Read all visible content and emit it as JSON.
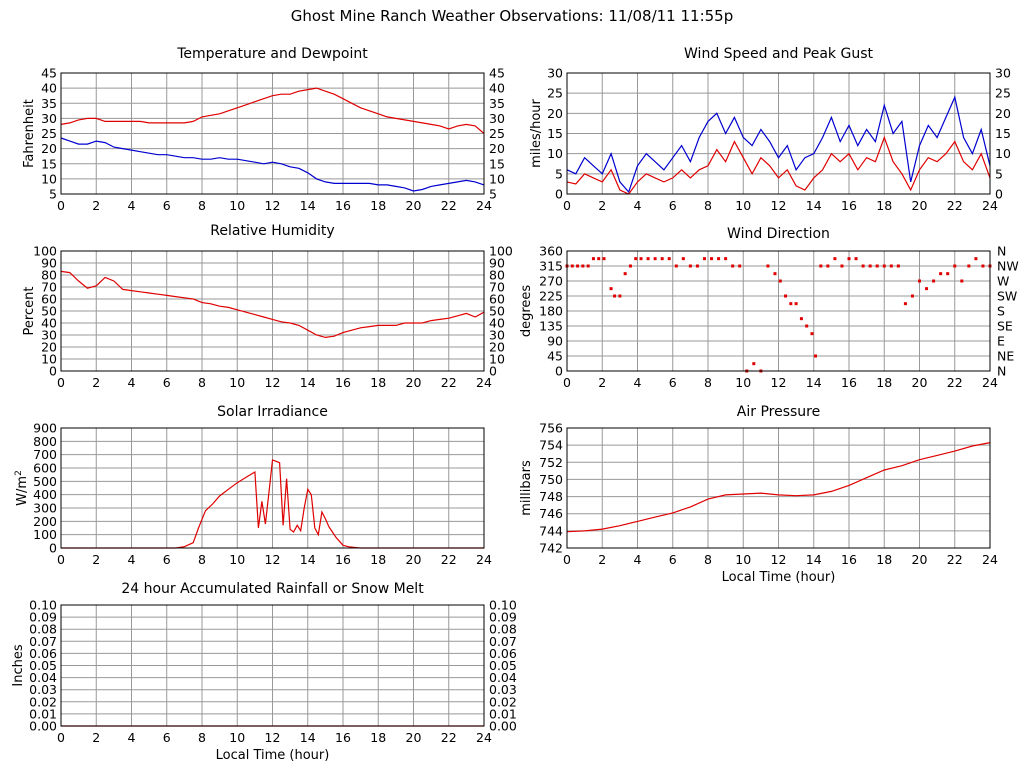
{
  "page": {
    "title": "Ghost Mine Ranch Weather Observations: 11/08/11 11:55p"
  },
  "chart_data": [
    {
      "id": "temperature",
      "type": "line",
      "title": "Temperature and Dewpoint",
      "ylabel": "Fahrenheit",
      "xlabel": "",
      "xlim": [
        0,
        24
      ],
      "ylim": [
        5,
        45
      ],
      "xticks": [
        0,
        2,
        4,
        6,
        8,
        10,
        12,
        14,
        16,
        18,
        20,
        22,
        24
      ],
      "yticks": [
        5,
        10,
        15,
        20,
        25,
        30,
        35,
        40,
        45
      ],
      "right_axis": true,
      "grid": true,
      "series": [
        {
          "color": "#e00000",
          "x": [
            0,
            0.5,
            1,
            1.5,
            2,
            2.5,
            3,
            3.5,
            4,
            4.5,
            5,
            5.5,
            6,
            6.5,
            7,
            7.5,
            8,
            8.5,
            9,
            9.5,
            10,
            10.5,
            11,
            11.5,
            12,
            12.5,
            13,
            13.5,
            14,
            14.5,
            15,
            15.5,
            16,
            16.5,
            17,
            17.5,
            18,
            18.5,
            19,
            19.5,
            20,
            20.5,
            21,
            21.5,
            22,
            22.5,
            23,
            23.5,
            24
          ],
          "y": [
            28,
            28.5,
            29.5,
            30,
            30,
            29,
            29,
            29,
            29,
            29,
            28.5,
            28.5,
            28.5,
            28.5,
            28.5,
            29,
            30.5,
            31,
            31.5,
            32.5,
            33.5,
            34.5,
            35.5,
            36.5,
            37.5,
            38,
            38,
            39,
            39.5,
            40,
            39,
            38,
            36.5,
            35,
            33.5,
            32.5,
            31.5,
            30.5,
            30,
            29.5,
            29,
            28.5,
            28,
            27.5,
            26.5,
            27.5,
            28,
            27.5,
            25
          ]
        },
        {
          "color": "#0000d0",
          "x": [
            0,
            0.5,
            1,
            1.5,
            2,
            2.5,
            3,
            3.5,
            4,
            4.5,
            5,
            5.5,
            6,
            6.5,
            7,
            7.5,
            8,
            8.5,
            9,
            9.5,
            10,
            10.5,
            11,
            11.5,
            12,
            12.5,
            13,
            13.5,
            14,
            14.5,
            15,
            15.5,
            16,
            16.5,
            17,
            17.5,
            18,
            18.5,
            19,
            19.5,
            20,
            20.5,
            21,
            21.5,
            22,
            22.5,
            23,
            23.5,
            24
          ],
          "y": [
            23.5,
            22.5,
            21.5,
            21.5,
            22.5,
            22,
            20.5,
            20,
            19.5,
            19,
            18.5,
            18,
            18,
            17.5,
            17,
            17,
            16.5,
            16.5,
            17,
            16.5,
            16.5,
            16,
            15.5,
            15,
            15.5,
            15,
            14,
            13.5,
            12,
            10,
            9,
            8.5,
            8.5,
            8.5,
            8.5,
            8.5,
            8,
            8,
            7.5,
            7,
            6,
            6.5,
            7.5,
            8,
            8.5,
            9,
            9.5,
            9,
            8
          ]
        }
      ]
    },
    {
      "id": "wind-speed",
      "type": "line",
      "title": "Wind Speed and Peak Gust",
      "ylabel": "miles/hour",
      "xlabel": "",
      "xlim": [
        0,
        24
      ],
      "ylim": [
        0,
        30
      ],
      "xticks": [
        0,
        2,
        4,
        6,
        8,
        10,
        12,
        14,
        16,
        18,
        20,
        22,
        24
      ],
      "yticks": [
        0,
        5,
        10,
        15,
        20,
        25,
        30
      ],
      "right_axis": true,
      "grid": true,
      "series": [
        {
          "color": "#0000d0",
          "x": [
            0,
            0.5,
            1,
            1.5,
            2,
            2.5,
            3,
            3.5,
            4,
            4.5,
            5,
            5.5,
            6,
            6.5,
            7,
            7.5,
            8,
            8.5,
            9,
            9.5,
            10,
            10.5,
            11,
            11.5,
            12,
            12.5,
            13,
            13.5,
            14,
            14.5,
            15,
            15.5,
            16,
            16.5,
            17,
            17.5,
            18,
            18.5,
            19,
            19.5,
            20,
            20.5,
            21,
            21.5,
            22,
            22.5,
            23,
            23.5,
            24
          ],
          "y": [
            6,
            5,
            9,
            7,
            5,
            10,
            3,
            0.5,
            7,
            10,
            8,
            6,
            9,
            12,
            8,
            14,
            18,
            20,
            15,
            19,
            14,
            12,
            16,
            13,
            9,
            12,
            6,
            9,
            10,
            14,
            19,
            13,
            17,
            12,
            16,
            13,
            22,
            15,
            18,
            3,
            12,
            17,
            14,
            19,
            24,
            14,
            10,
            16,
            7
          ]
        },
        {
          "color": "#e00000",
          "x": [
            0,
            0.5,
            1,
            1.5,
            2,
            2.5,
            3,
            3.5,
            4,
            4.5,
            5,
            5.5,
            6,
            6.5,
            7,
            7.5,
            8,
            8.5,
            9,
            9.5,
            10,
            10.5,
            11,
            11.5,
            12,
            12.5,
            13,
            13.5,
            14,
            14.5,
            15,
            15.5,
            16,
            16.5,
            17,
            17.5,
            18,
            18.5,
            19,
            19.5,
            20,
            20.5,
            21,
            21.5,
            22,
            22.5,
            23,
            23.5,
            24
          ],
          "y": [
            3,
            2.5,
            5,
            4,
            3,
            6,
            1,
            0,
            3,
            5,
            4,
            3,
            4,
            6,
            4,
            6,
            7,
            11,
            8,
            13,
            9,
            5,
            9,
            7,
            4,
            6,
            2,
            1,
            4,
            6,
            10,
            8,
            10,
            6,
            9,
            8,
            14,
            8,
            5,
            1,
            6,
            9,
            8,
            10,
            13,
            8,
            6,
            10,
            4
          ]
        }
      ]
    },
    {
      "id": "humidity",
      "type": "line",
      "title": "Relative Humidity",
      "ylabel": "Percent",
      "xlabel": "",
      "xlim": [
        0,
        24
      ],
      "ylim": [
        0,
        100
      ],
      "xticks": [
        0,
        2,
        4,
        6,
        8,
        10,
        12,
        14,
        16,
        18,
        20,
        22,
        24
      ],
      "yticks": [
        0,
        10,
        20,
        30,
        40,
        50,
        60,
        70,
        80,
        90,
        100
      ],
      "right_axis": true,
      "grid": true,
      "series": [
        {
          "color": "#e00000",
          "x": [
            0,
            0.5,
            1,
            1.5,
            2,
            2.5,
            3,
            3.5,
            4,
            4.5,
            5,
            5.5,
            6,
            6.5,
            7,
            7.5,
            8,
            8.5,
            9,
            9.5,
            10,
            10.5,
            11,
            11.5,
            12,
            12.5,
            13,
            13.5,
            14,
            14.5,
            15,
            15.5,
            16,
            16.5,
            17,
            17.5,
            18,
            18.5,
            19,
            19.5,
            20,
            20.5,
            21,
            21.5,
            22,
            22.5,
            23,
            23.5,
            24
          ],
          "y": [
            83,
            82,
            75,
            69,
            71,
            78,
            75,
            68,
            67,
            66,
            65,
            64,
            63,
            62,
            61,
            60,
            57,
            56,
            54,
            53,
            51,
            49,
            47,
            45,
            43,
            41,
            40,
            38,
            34,
            30,
            28,
            29,
            32,
            34,
            36,
            37,
            38,
            38,
            38,
            40,
            40,
            40,
            42,
            43,
            44,
            46,
            48,
            45,
            49
          ]
        }
      ]
    },
    {
      "id": "wind-direction",
      "type": "scatter",
      "title": "Wind Direction",
      "ylabel": "degrees",
      "xlabel": "",
      "xlim": [
        0,
        24
      ],
      "ylim": [
        0,
        360
      ],
      "xticks": [
        0,
        2,
        4,
        6,
        8,
        10,
        12,
        14,
        16,
        18,
        20,
        22,
        24
      ],
      "yticks": [
        0,
        45,
        90,
        135,
        180,
        225,
        270,
        315,
        360
      ],
      "right_labels": [
        "N",
        "NE",
        "E",
        "SE",
        "S",
        "SW",
        "W",
        "NW",
        "N"
      ],
      "grid": true,
      "series": [
        {
          "color": "#e00000",
          "x": [
            0,
            0.3,
            0.6,
            0.9,
            1.2,
            1.5,
            1.8,
            2.1,
            2.5,
            2.7,
            3.0,
            3.3,
            3.6,
            3.9,
            4.2,
            4.6,
            5.0,
            5.4,
            5.8,
            6.2,
            6.6,
            7.0,
            7.4,
            7.8,
            8.2,
            8.6,
            9.0,
            9.4,
            9.8,
            10.2,
            10.6,
            11.0,
            11.4,
            11.8,
            12.1,
            12.4,
            12.7,
            13.0,
            13.3,
            13.6,
            13.9,
            14.1,
            14.4,
            14.8,
            15.2,
            15.6,
            16.0,
            16.4,
            16.8,
            17.2,
            17.6,
            18.0,
            18.4,
            18.8,
            19.2,
            19.6,
            20.0,
            20.4,
            20.8,
            21.2,
            21.6,
            22.0,
            22.4,
            22.8,
            23.2,
            23.6,
            24.0
          ],
          "y": [
            315,
            315,
            315,
            315,
            315,
            337,
            337,
            337,
            247,
            225,
            225,
            292,
            315,
            337,
            337,
            337,
            337,
            337,
            337,
            315,
            337,
            315,
            315,
            337,
            337,
            337,
            337,
            315,
            315,
            0,
            22,
            0,
            315,
            292,
            270,
            225,
            202,
            202,
            157,
            135,
            112,
            45,
            315,
            315,
            337,
            315,
            337,
            337,
            315,
            315,
            315,
            315,
            315,
            315,
            202,
            225,
            270,
            247,
            270,
            292,
            292,
            315,
            270,
            315,
            337,
            315,
            315
          ]
        }
      ]
    },
    {
      "id": "solar",
      "type": "line",
      "title": "Solar Irradiance",
      "ylabel": "W/m",
      "ylabel_sup": "2",
      "xlabel": "",
      "xlim": [
        0,
        24
      ],
      "ylim": [
        0,
        900
      ],
      "xticks": [
        0,
        2,
        4,
        6,
        8,
        10,
        12,
        14,
        16,
        18,
        20,
        22,
        24
      ],
      "yticks": [
        0,
        100,
        200,
        300,
        400,
        500,
        600,
        700,
        800,
        900
      ],
      "right_axis": false,
      "grid": true,
      "series": [
        {
          "color": "#e00000",
          "x": [
            0,
            6.5,
            7.0,
            7.5,
            7.8,
            8.2,
            8.6,
            9.0,
            9.5,
            10.0,
            10.5,
            11.0,
            11.2,
            11.4,
            11.6,
            11.8,
            12.0,
            12.2,
            12.4,
            12.6,
            12.8,
            13.0,
            13.2,
            13.4,
            13.6,
            13.8,
            14.0,
            14.2,
            14.4,
            14.6,
            14.8,
            15.0,
            15.2,
            15.4,
            15.6,
            15.8,
            16.0,
            16.3,
            16.6,
            17.0,
            24
          ],
          "y": [
            0,
            0,
            10,
            40,
            150,
            280,
            330,
            390,
            440,
            490,
            530,
            570,
            150,
            350,
            180,
            420,
            660,
            650,
            640,
            170,
            520,
            140,
            120,
            170,
            130,
            300,
            440,
            400,
            150,
            100,
            270,
            220,
            160,
            120,
            80,
            50,
            20,
            10,
            5,
            0,
            0
          ]
        }
      ]
    },
    {
      "id": "pressure",
      "type": "line",
      "title": "Air Pressure",
      "ylabel": "millibars",
      "xlabel": "Local Time (hour)",
      "xlim": [
        0,
        24
      ],
      "ylim": [
        742,
        756
      ],
      "xticks": [
        0,
        2,
        4,
        6,
        8,
        10,
        12,
        14,
        16,
        18,
        20,
        22,
        24
      ],
      "yticks": [
        742,
        744,
        746,
        748,
        750,
        752,
        754,
        756
      ],
      "right_axis": false,
      "grid": true,
      "series": [
        {
          "color": "#e00000",
          "x": [
            0,
            1,
            2,
            3,
            4,
            5,
            6,
            7,
            8,
            9,
            10,
            11,
            12,
            13,
            14,
            15,
            16,
            17,
            18,
            19,
            20,
            21,
            22,
            23,
            24
          ],
          "y": [
            743.9,
            744.0,
            744.2,
            744.6,
            745.1,
            745.6,
            746.1,
            746.8,
            747.7,
            748.2,
            748.3,
            748.4,
            748.2,
            748.1,
            748.2,
            748.6,
            749.3,
            750.2,
            751.1,
            751.6,
            752.3,
            752.8,
            753.3,
            753.9,
            754.3
          ]
        }
      ]
    },
    {
      "id": "rainfall",
      "type": "line",
      "title": "24 hour Accumulated Rainfall or Snow Melt",
      "ylabel": "Inches",
      "xlabel": "Local Time (hour)",
      "xlim": [
        0,
        24
      ],
      "ylim": [
        0,
        0.1
      ],
      "xticks": [
        0,
        2,
        4,
        6,
        8,
        10,
        12,
        14,
        16,
        18,
        20,
        22,
        24
      ],
      "yticks": [
        0,
        0.01,
        0.02,
        0.03,
        0.04,
        0.05,
        0.06,
        0.07,
        0.08,
        0.09,
        0.1
      ],
      "ytick_labels": [
        "0.00",
        "0.01",
        "0.02",
        "0.03",
        "0.04",
        "0.05",
        "0.06",
        "0.07",
        "0.08",
        "0.09",
        "0.10"
      ],
      "right_axis": true,
      "grid": true,
      "series": [
        {
          "color": "#e00000",
          "x": [
            0,
            24
          ],
          "y": [
            0,
            0
          ]
        }
      ]
    }
  ]
}
